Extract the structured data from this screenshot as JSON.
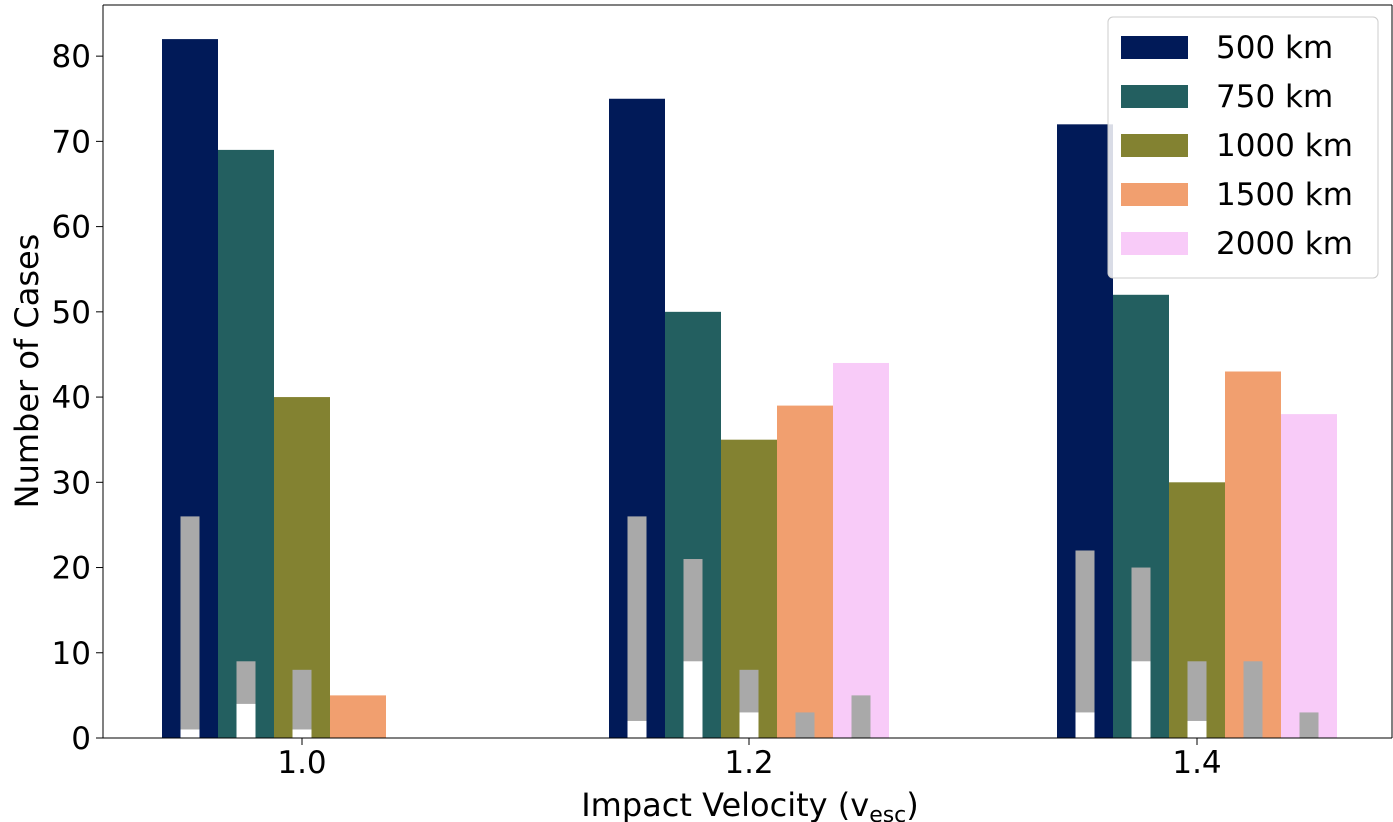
{
  "chart_data": {
    "type": "bar",
    "xlabel": "Impact Velocity (v",
    "xlabel_sub": "esc",
    "xlabel_close": ")",
    "ylabel": "Number of Cases",
    "ylim": [
      0,
      86
    ],
    "yticks": [
      0,
      10,
      20,
      30,
      40,
      50,
      60,
      70,
      80
    ],
    "categories": [
      "1.0",
      "1.2",
      "1.4"
    ],
    "legend_position": "top-right",
    "grid": false,
    "series": [
      {
        "name": "500 km",
        "color": "#011a58",
        "values": [
          82,
          75,
          72
        ],
        "overlay_gray": [
          26,
          26,
          22
        ],
        "overlay_white": [
          1,
          2,
          3
        ]
      },
      {
        "name": "750 km",
        "color": "#235f60",
        "values": [
          69,
          50,
          52
        ],
        "overlay_gray": [
          9,
          21,
          20
        ],
        "overlay_white": [
          4,
          9,
          9
        ]
      },
      {
        "name": "1000 km",
        "color": "#838231",
        "values": [
          40,
          35,
          30
        ],
        "overlay_gray": [
          8,
          8,
          9
        ],
        "overlay_white": [
          1,
          3,
          2
        ]
      },
      {
        "name": "1500 km",
        "color": "#f19f6f",
        "values": [
          5,
          39,
          43
        ],
        "overlay_gray": [
          0,
          3,
          9
        ],
        "overlay_white": [
          0,
          0,
          0
        ]
      },
      {
        "name": "2000 km",
        "color": "#f8cbf8",
        "values": [
          0,
          44,
          38
        ],
        "overlay_gray": [
          0,
          5,
          3
        ],
        "overlay_white": [
          0,
          0,
          0
        ]
      }
    ],
    "overlay_colors": {
      "gray": "#a9a9a9",
      "white": "#ffffff"
    }
  }
}
